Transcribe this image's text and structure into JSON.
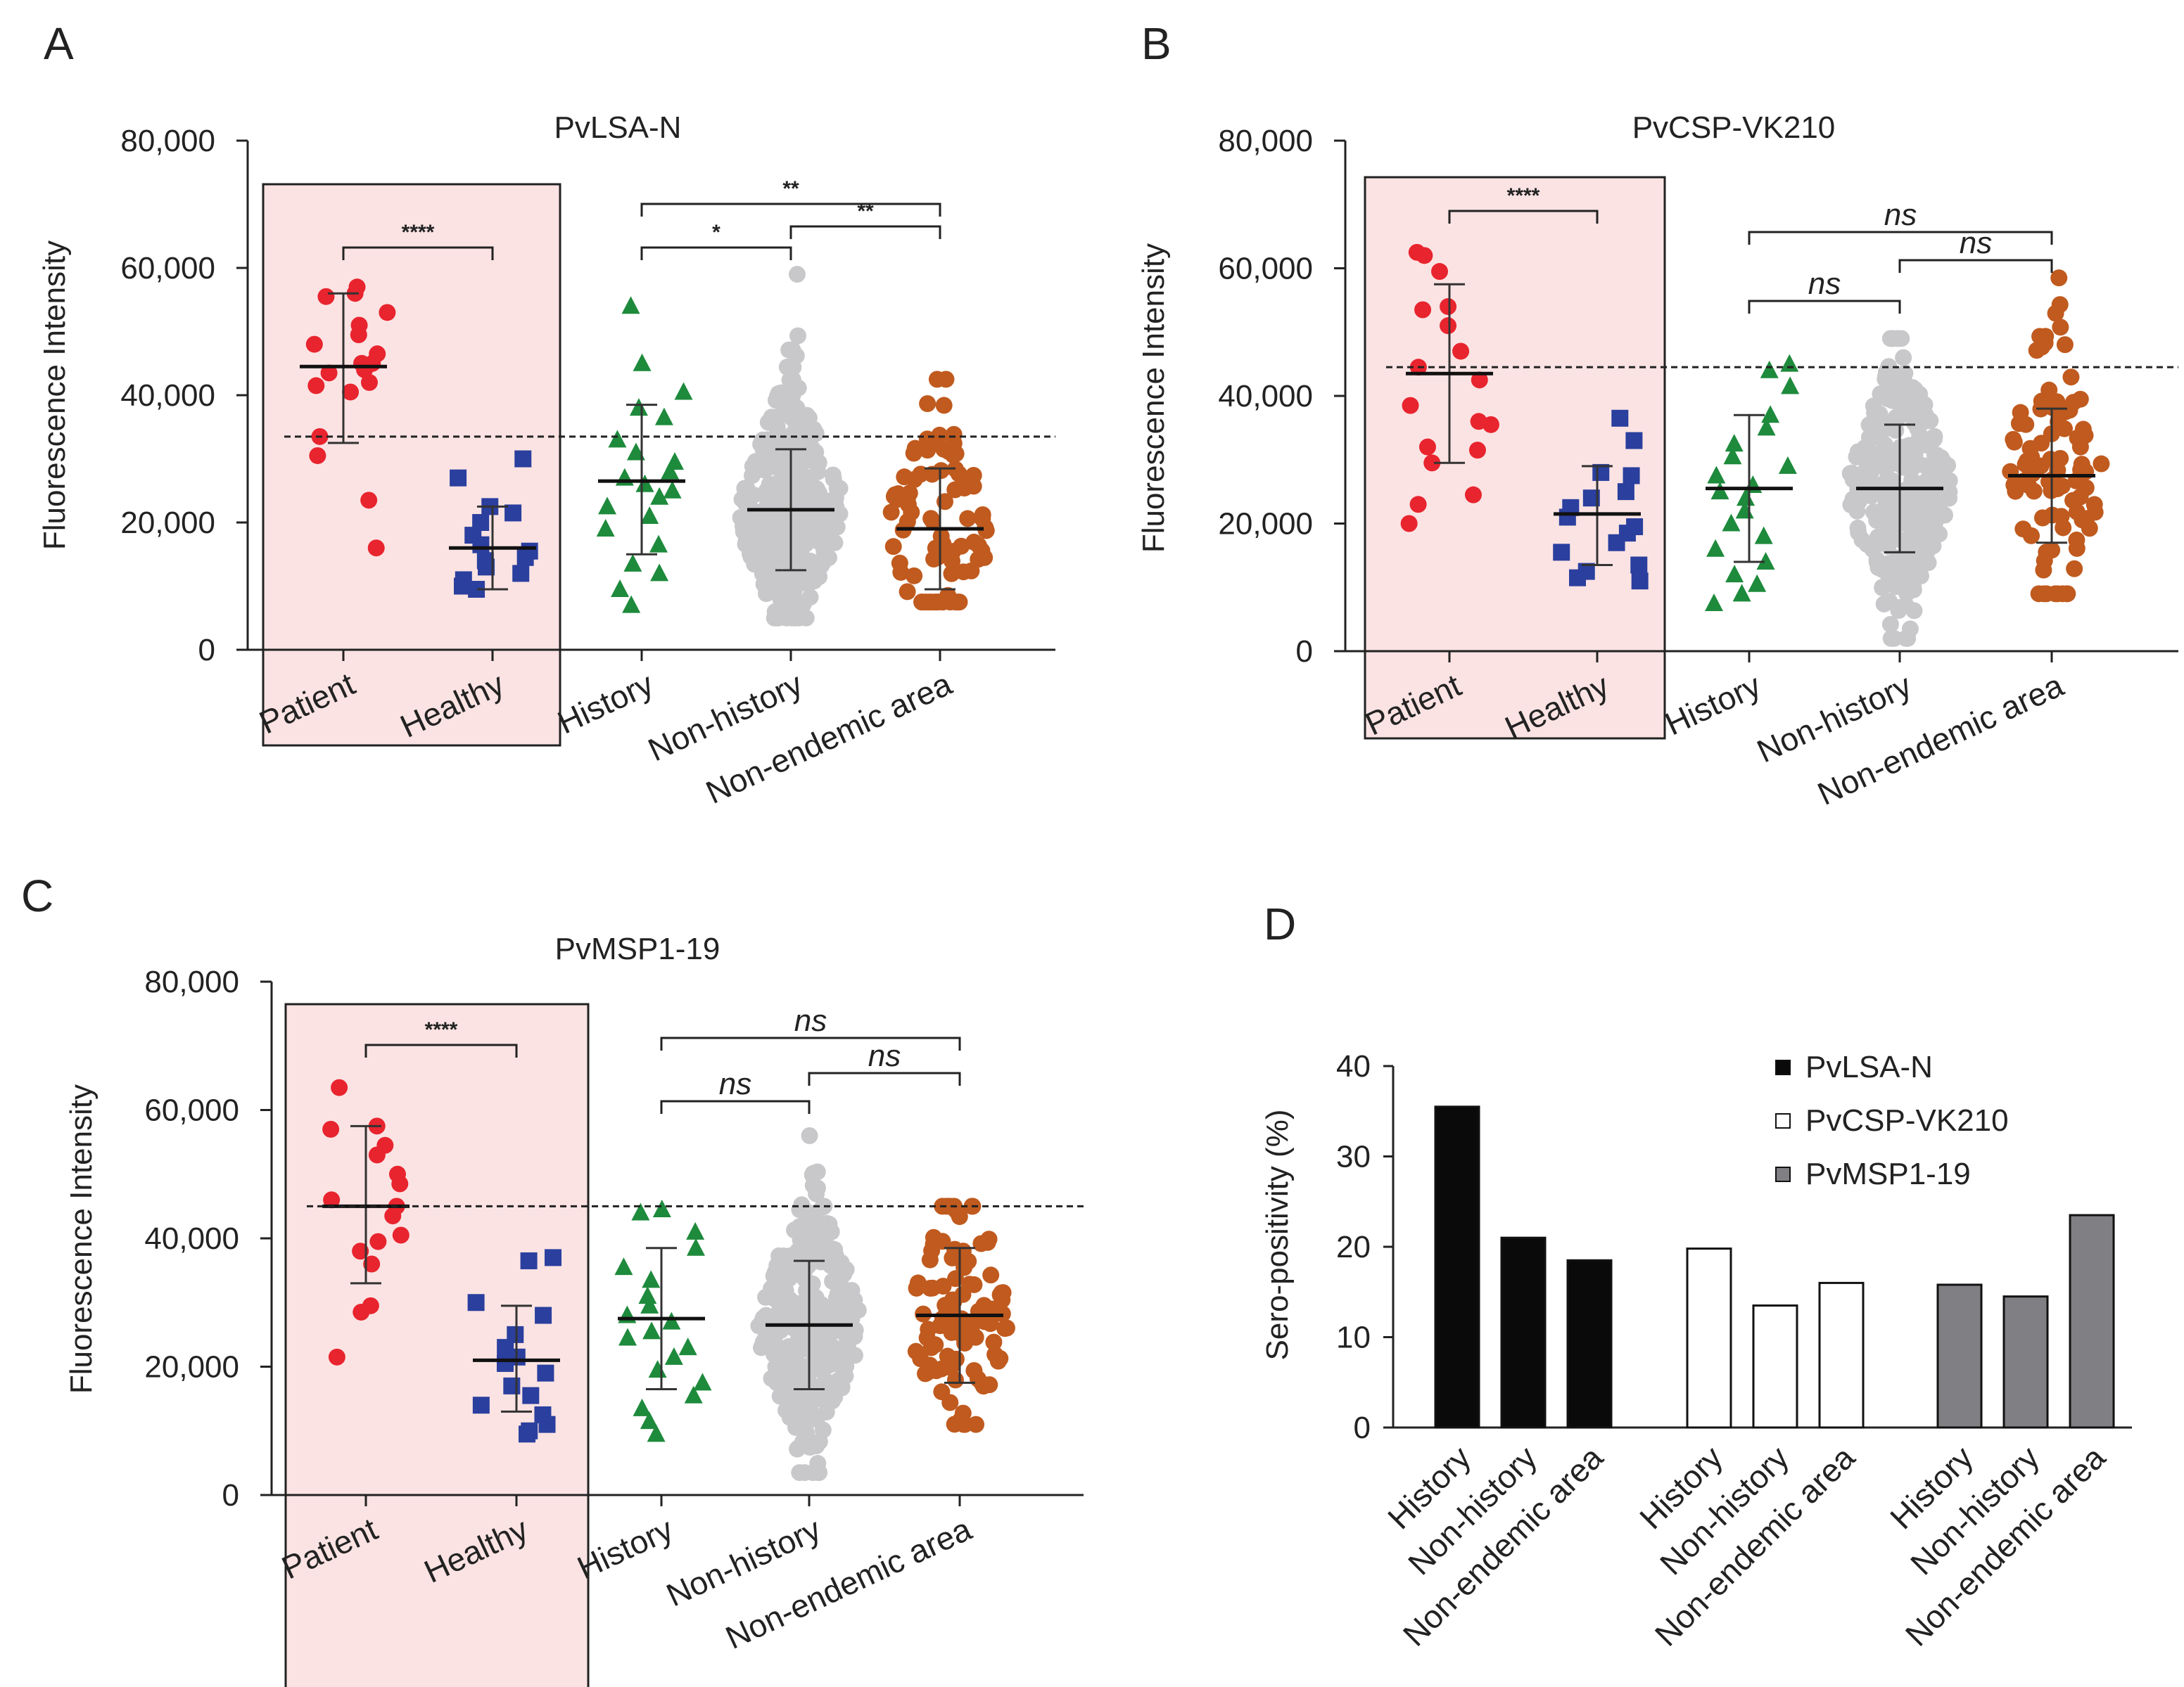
{
  "chart_data": [
    {
      "panel": "A",
      "type": "scatter",
      "title": "PvLSA-N",
      "ylabel": "Fluorescence Intensity",
      "ylim": [
        0,
        80000
      ],
      "yticks": [
        "0",
        "20,000",
        "40,000",
        "60,000",
        "80,000"
      ],
      "yticks_values": [
        0,
        20000,
        40000,
        60000,
        80000
      ],
      "categories": [
        "Patient",
        "Healthy",
        "History",
        "Non-history",
        "Non-endemic area"
      ],
      "highlight_groups": [
        "Patient",
        "Healthy"
      ],
      "cutoff": 33500,
      "groups": [
        {
          "name": "Patient",
          "color": "#e8242e",
          "marker": "circle",
          "mean": 44500,
          "sd_low": 32500,
          "sd_high": 56000,
          "points": [
            57000,
            55500,
            56000,
            53000,
            51000,
            49500,
            48000,
            46500,
            45000,
            45000,
            44000,
            43500,
            42000,
            41500,
            40500,
            33500,
            30500,
            23500,
            16000
          ]
        },
        {
          "name": "Healthy",
          "color": "#2a3f9e",
          "marker": "square",
          "mean": 16000,
          "sd_low": 9500,
          "sd_high": 22500,
          "points": [
            30000,
            27000,
            22500,
            21500,
            20000,
            18000,
            16500,
            15500,
            14500,
            14000,
            13000,
            12000,
            11000,
            10000,
            9500
          ]
        },
        {
          "name": "History",
          "color": "#1e8a3c",
          "marker": "triangle",
          "mean": 26500,
          "sd_low": 15000,
          "sd_high": 38500,
          "points": [
            54000,
            45000,
            40500,
            38000,
            36500,
            33000,
            31000,
            29500,
            28000,
            27000,
            26000,
            25000,
            24000,
            22500,
            21000,
            19000,
            16500,
            13500,
            12000,
            9500,
            7000
          ]
        },
        {
          "name": "Non-history",
          "color": "#c8c8cb",
          "marker": "circle",
          "mean": 22000,
          "sd_low": 12500,
          "sd_high": 31500,
          "n": 320,
          "range": [
            5000,
            59000
          ]
        },
        {
          "name": "Non-endemic area",
          "color": "#c05a1e",
          "marker": "circle",
          "mean": 19000,
          "sd_low": 9500,
          "sd_high": 28500,
          "n": 85,
          "range": [
            7500,
            42500
          ]
        }
      ],
      "comparisons": [
        {
          "from": "Patient",
          "to": "Healthy",
          "label": "****"
        },
        {
          "from": "History",
          "to": "Non-history",
          "label": "*"
        },
        {
          "from": "Non-history",
          "to": "Non-endemic area",
          "label": "**"
        },
        {
          "from": "History",
          "to": "Non-endemic area",
          "label": "**"
        }
      ]
    },
    {
      "panel": "B",
      "type": "scatter",
      "title": "PvCSP-VK210",
      "ylabel": "Fluorescence Intensity",
      "ylim": [
        0,
        80000
      ],
      "yticks": [
        "0",
        "20,000",
        "40,000",
        "60,000",
        "80,000"
      ],
      "yticks_values": [
        0,
        20000,
        40000,
        60000,
        80000
      ],
      "categories": [
        "Patient",
        "Healthy",
        "History",
        "Non-history",
        "Non-endemic area"
      ],
      "highlight_groups": [
        "Patient",
        "Healthy"
      ],
      "cutoff": 44500,
      "groups": [
        {
          "name": "Patient",
          "color": "#e8242e",
          "marker": "circle",
          "mean": 43500,
          "sd_low": 29500,
          "sd_high": 57500,
          "points": [
            62500,
            62000,
            59500,
            54000,
            53500,
            51000,
            47000,
            44500,
            42500,
            38500,
            36000,
            35500,
            32000,
            31500,
            29500,
            24500,
            23000,
            20000
          ]
        },
        {
          "name": "Healthy",
          "color": "#2a3f9e",
          "marker": "square",
          "mean": 21500,
          "sd_low": 13500,
          "sd_high": 29000,
          "points": [
            36500,
            33000,
            28000,
            27500,
            25000,
            24000,
            22500,
            21000,
            19500,
            18500,
            17000,
            15500,
            13500,
            12500,
            11500,
            11000
          ]
        },
        {
          "name": "History",
          "color": "#1e8a3c",
          "marker": "triangle",
          "mean": 25500,
          "sd_low": 14000,
          "sd_high": 37000,
          "points": [
            45000,
            44000,
            41500,
            37000,
            35000,
            32500,
            30500,
            29000,
            27500,
            26000,
            25000,
            24000,
            22000,
            20000,
            18000,
            16000,
            14000,
            12000,
            10500,
            9000,
            7500
          ]
        },
        {
          "name": "Non-history",
          "color": "#c8c8cb",
          "marker": "circle",
          "mean": 25500,
          "sd_low": 15500,
          "sd_high": 35500,
          "n": 300,
          "range": [
            2000,
            49000
          ]
        },
        {
          "name": "Non-endemic area",
          "color": "#c05a1e",
          "marker": "circle",
          "mean": 27500,
          "sd_low": 17000,
          "sd_high": 38000,
          "n": 90,
          "range": [
            9000,
            58500
          ]
        }
      ],
      "comparisons": [
        {
          "from": "Patient",
          "to": "Healthy",
          "label": "****"
        },
        {
          "from": "History",
          "to": "Non-history",
          "label": "ns"
        },
        {
          "from": "Non-history",
          "to": "Non-endemic area",
          "label": "ns"
        },
        {
          "from": "History",
          "to": "Non-endemic area",
          "label": "ns"
        }
      ]
    },
    {
      "panel": "C",
      "type": "scatter",
      "title": "PvMSP1-19",
      "ylabel": "Fluorescence Intensity",
      "ylim": [
        0,
        80000
      ],
      "yticks": [
        "0",
        "20,000",
        "40,000",
        "60,000",
        "80,000"
      ],
      "yticks_values": [
        0,
        20000,
        40000,
        60000,
        80000
      ],
      "categories": [
        "Patient",
        "Healthy",
        "History",
        "Non-history",
        "Non-endemic area"
      ],
      "highlight_groups": [
        "Patient",
        "Healthy"
      ],
      "cutoff": 45000,
      "groups": [
        {
          "name": "Patient",
          "color": "#e8242e",
          "marker": "circle",
          "mean": 45000,
          "sd_low": 33000,
          "sd_high": 57500,
          "points": [
            63500,
            57500,
            57000,
            54500,
            53000,
            50000,
            48500,
            46000,
            45000,
            43500,
            40500,
            39500,
            38000,
            36000,
            29500,
            28500,
            21500
          ]
        },
        {
          "name": "Healthy",
          "color": "#2a3f9e",
          "marker": "square",
          "mean": 21000,
          "sd_low": 13000,
          "sd_high": 29500,
          "points": [
            37000,
            36500,
            30000,
            28000,
            25000,
            23000,
            21500,
            20500,
            19000,
            17000,
            15500,
            14000,
            12500,
            11000,
            10000,
            9500
          ]
        },
        {
          "name": "History",
          "color": "#1e8a3c",
          "marker": "triangle",
          "mean": 27500,
          "sd_low": 16500,
          "sd_high": 38500,
          "points": [
            44500,
            44000,
            41000,
            38500,
            35500,
            33500,
            31000,
            29500,
            28000,
            27000,
            25500,
            24500,
            23000,
            21500,
            19500,
            17500,
            15500,
            13500,
            11500,
            9500
          ]
        },
        {
          "name": "Non-history",
          "color": "#c8c8cb",
          "marker": "circle",
          "mean": 26500,
          "sd_low": 16500,
          "sd_high": 36500,
          "n": 300,
          "range": [
            3500,
            56000
          ]
        },
        {
          "name": "Non-endemic area",
          "color": "#c05a1e",
          "marker": "circle",
          "mean": 28000,
          "sd_low": 17500,
          "sd_high": 38500,
          "n": 90,
          "range": [
            11000,
            45000
          ]
        }
      ],
      "comparisons": [
        {
          "from": "Patient",
          "to": "Healthy",
          "label": "****"
        },
        {
          "from": "History",
          "to": "Non-history",
          "label": "ns"
        },
        {
          "from": "Non-history",
          "to": "Non-endemic area",
          "label": "ns"
        },
        {
          "from": "History",
          "to": "Non-endemic area",
          "label": "ns"
        }
      ]
    },
    {
      "panel": "D",
      "type": "bar",
      "title": "",
      "ylabel": "Sero-positivity (%)",
      "ylim": [
        0,
        40
      ],
      "yticks": [
        "0",
        "10",
        "20",
        "30",
        "40"
      ],
      "yticks_values": [
        0,
        10,
        20,
        30,
        40
      ],
      "categories": [
        "History",
        "Non-history",
        "Non-endemic area"
      ],
      "series": [
        {
          "name": "PvLSA-N",
          "fill": "#0a0a0a",
          "values": [
            35.5,
            21.0,
            18.5
          ]
        },
        {
          "name": "PvCSP-VK210",
          "fill": "#ffffff",
          "values": [
            19.8,
            13.5,
            16.0
          ]
        },
        {
          "name": "PvMSP1-19",
          "fill": "#808084",
          "values": [
            15.8,
            14.5,
            23.5
          ]
        }
      ],
      "legend_position": "top-right"
    }
  ]
}
